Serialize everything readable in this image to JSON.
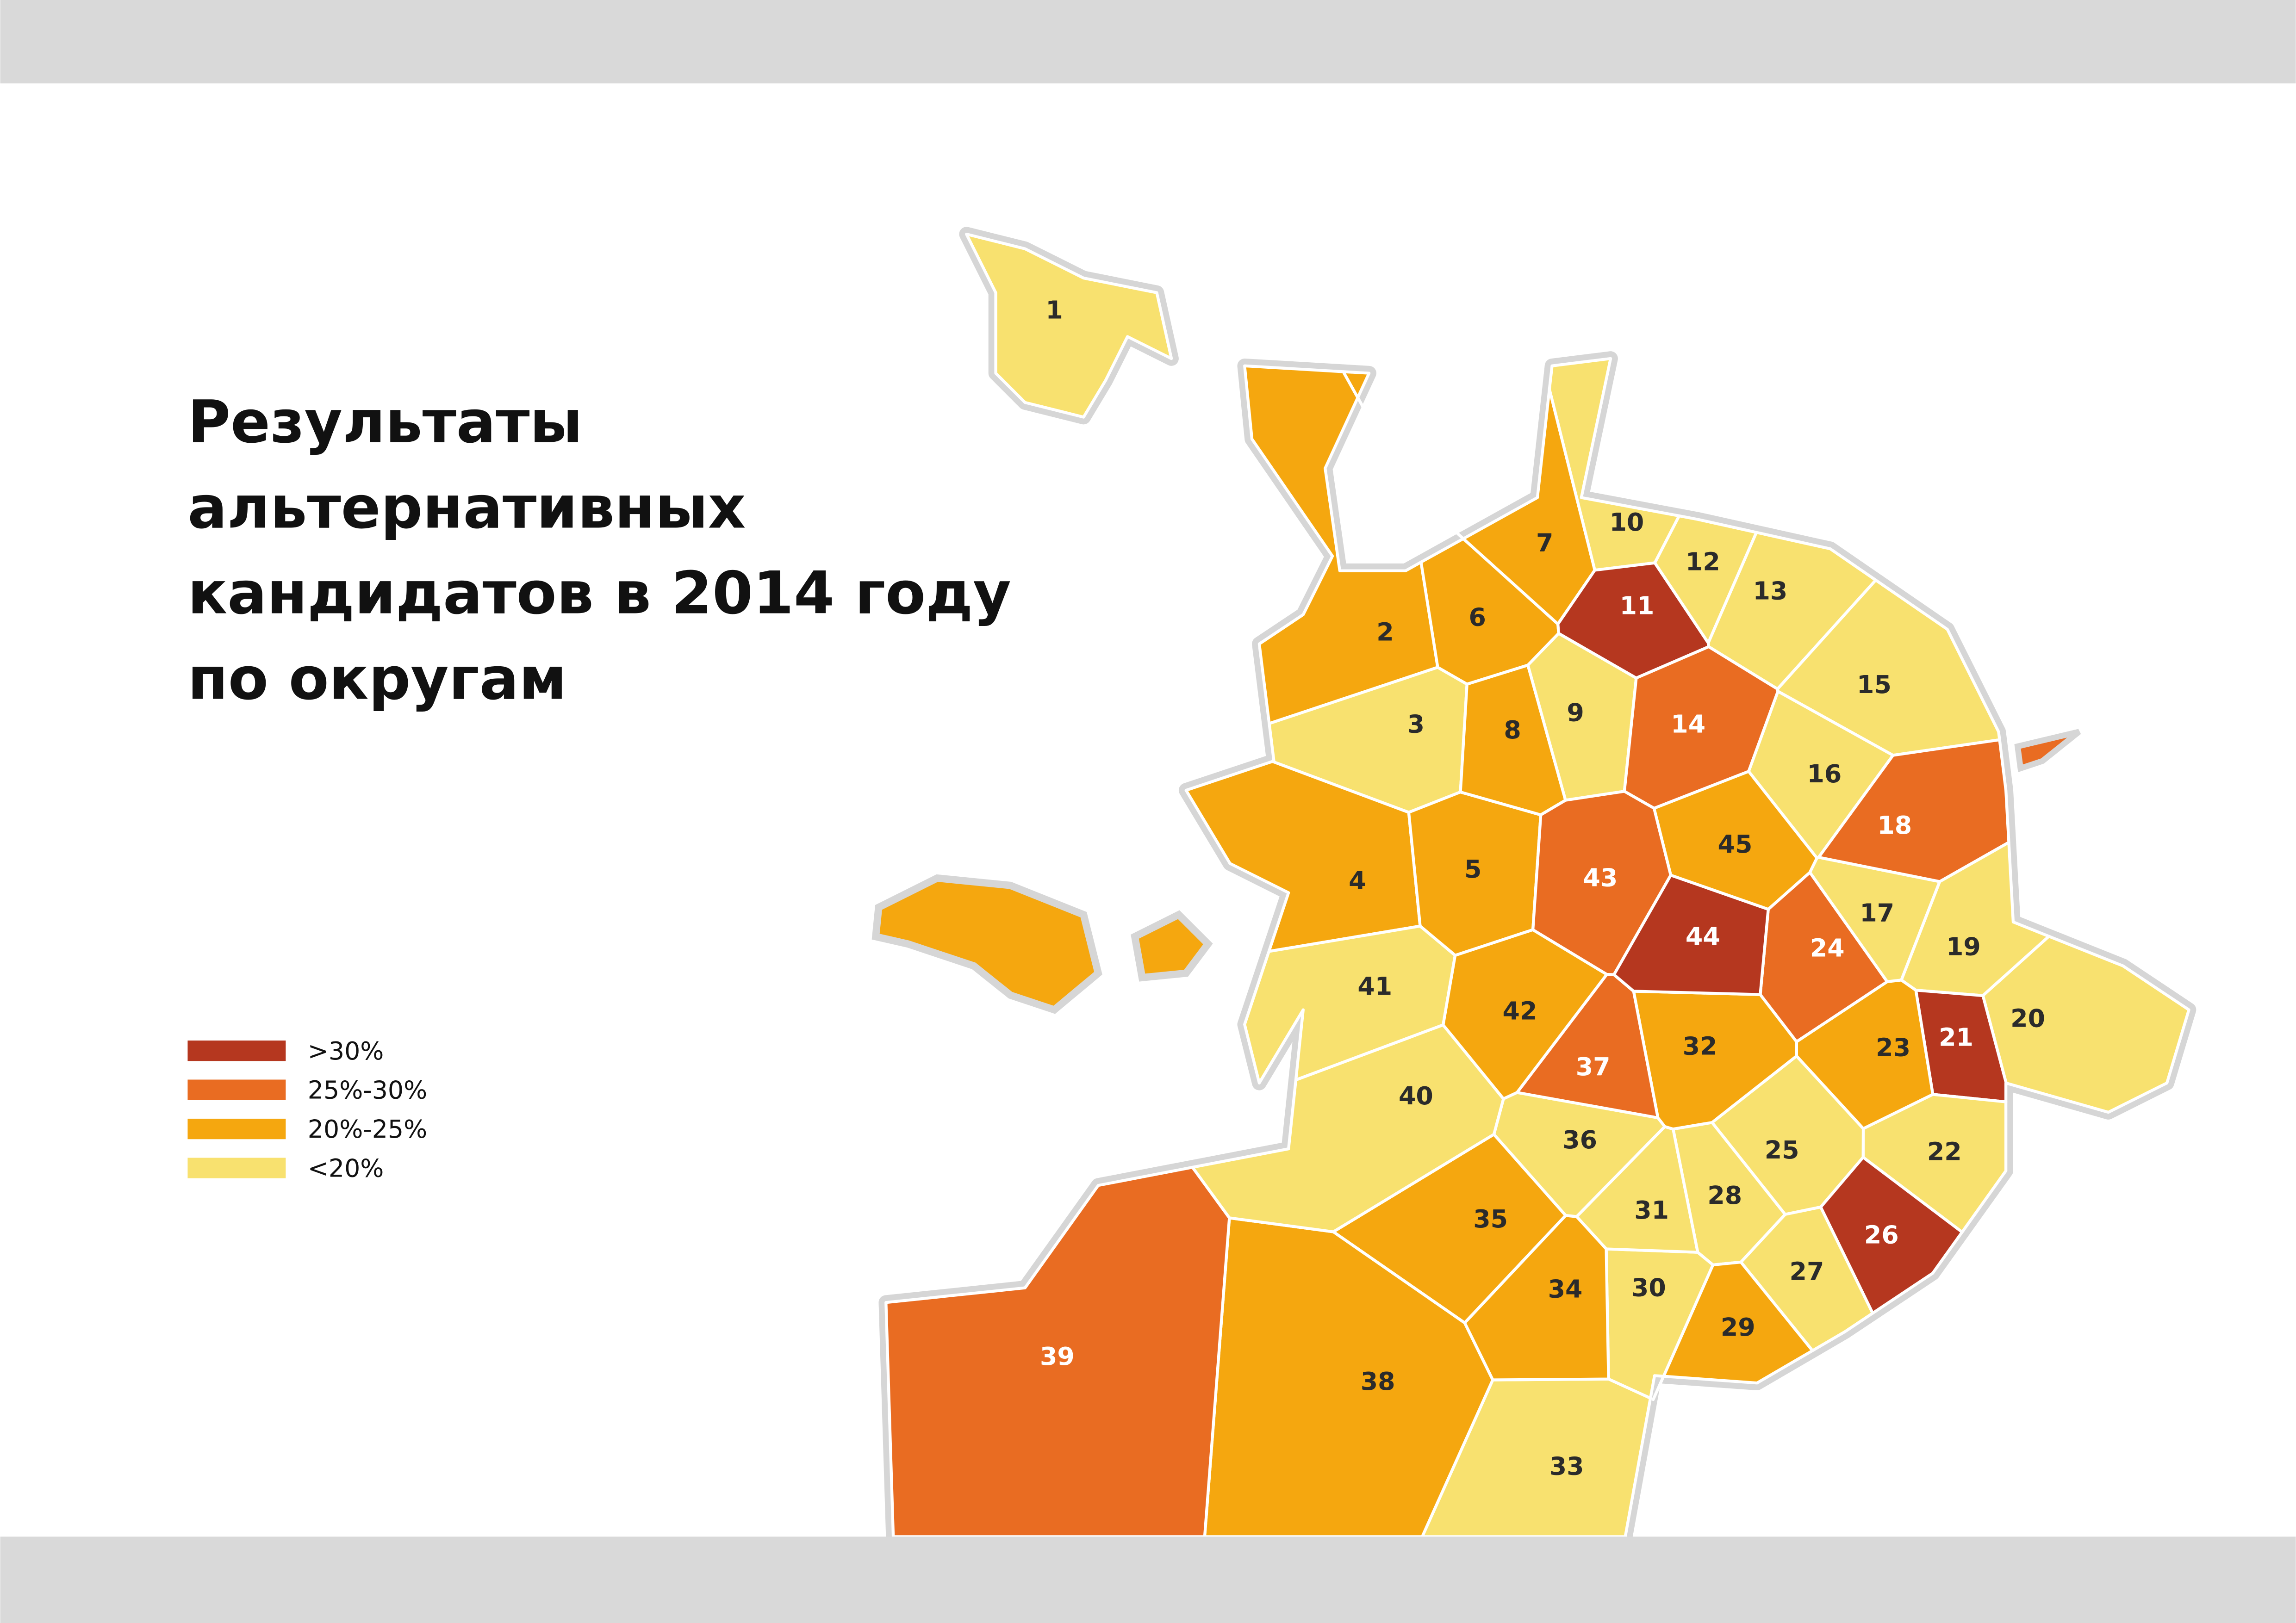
{
  "title_lines": [
    "Результаты",
    "альтернативных",
    "кандидатов в 2014 году",
    "по округам"
  ],
  "legend": [
    {
      "label": ">30%",
      "color": "#b5371f"
    },
    {
      "label": "25%-30%",
      "color": "#e96c22"
    },
    {
      "label": "20%-25%",
      "color": "#f5a70f"
    },
    {
      "label": "<20%",
      "color": "#f8e16f"
    }
  ],
  "districts": [
    {
      "label": "1",
      "color": "#f8e16f"
    },
    {
      "label": "2",
      "color": "#f5a70f"
    },
    {
      "label": "3",
      "color": "#f8e16f"
    },
    {
      "label": "4",
      "color": "#f5a70f"
    },
    {
      "label": "5",
      "color": "#f5a70f"
    },
    {
      "label": "6",
      "color": "#f5a70f"
    },
    {
      "label": "7",
      "color": "#f5a70f"
    },
    {
      "label": "8",
      "color": "#f5a70f"
    },
    {
      "label": "9",
      "color": "#f8e16f"
    },
    {
      "label": "10",
      "color": "#f8e16f"
    },
    {
      "label": "11",
      "color": "#b5371f"
    },
    {
      "label": "12",
      "color": "#f8e16f"
    },
    {
      "label": "13",
      "color": "#f8e16f"
    },
    {
      "label": "14",
      "color": "#e96c22"
    },
    {
      "label": "15",
      "color": "#f8e16f"
    },
    {
      "label": "16",
      "color": "#f8e16f"
    },
    {
      "label": "17",
      "color": "#f8e16f"
    },
    {
      "label": "18",
      "color": "#e96c22"
    },
    {
      "label": "19",
      "color": "#f8e16f"
    },
    {
      "label": "20",
      "color": "#f8e16f"
    },
    {
      "label": "21",
      "color": "#b5371f"
    },
    {
      "label": "22",
      "color": "#f8e16f"
    },
    {
      "label": "23",
      "color": "#f5a70f"
    },
    {
      "label": "24",
      "color": "#e96c22"
    },
    {
      "label": "25",
      "color": "#f8e16f"
    },
    {
      "label": "26",
      "color": "#b5371f"
    },
    {
      "label": "27",
      "color": "#f8e16f"
    },
    {
      "label": "28",
      "color": "#f8e16f"
    },
    {
      "label": "29",
      "color": "#f5a70f"
    },
    {
      "label": "30",
      "color": "#f8e16f"
    },
    {
      "label": "31",
      "color": "#f8e16f"
    },
    {
      "label": "32",
      "color": "#f5a70f"
    },
    {
      "label": "33",
      "color": "#f8e16f"
    },
    {
      "label": "34",
      "color": "#f5a70f"
    },
    {
      "label": "35",
      "color": "#f5a70f"
    },
    {
      "label": "36",
      "color": "#f8e16f"
    },
    {
      "label": "37",
      "color": "#e96c22"
    },
    {
      "label": "38",
      "color": "#f5a70f"
    },
    {
      "label": "39",
      "color": "#e96c22"
    },
    {
      "label": "40",
      "color": "#f8e16f"
    },
    {
      "label": "41",
      "color": "#f8e16f"
    },
    {
      "label": "42",
      "color": "#f5a70f"
    },
    {
      "label": "43",
      "color": "#e96c22"
    },
    {
      "label": "44",
      "color": "#b5371f"
    },
    {
      "label": "45",
      "color": "#f5a70f"
    }
  ]
}
